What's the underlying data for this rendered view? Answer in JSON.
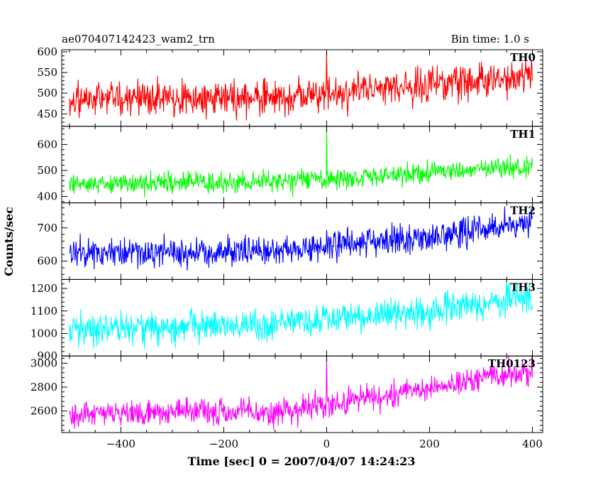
{
  "header": {
    "title": "ae070407142423_wam2_trn",
    "bin_time": "Bin time: 1.0 s"
  },
  "chart_data": {
    "type": "line",
    "xlabel": "Time [sec] 0 = 2007/04/07 14:24:23",
    "ylabel": "Counts/sec",
    "xlim": [
      -515,
      420
    ],
    "x_ticks": [
      -400,
      -200,
      0,
      200,
      400
    ],
    "x_tick_labels": [
      "−400",
      "−200",
      "0",
      "200",
      "400"
    ],
    "bin_size_s": 1.0,
    "x_range_data": [
      -500,
      400
    ],
    "legend": "none",
    "grid": false,
    "panels": [
      {
        "name": "TH0",
        "color": "#ff0000",
        "ylim": [
          420,
          605
        ],
        "y_ticks": [
          450,
          500,
          550,
          600
        ],
        "y_tick_labels": [
          "450",
          "500",
          "550",
          "600"
        ],
        "trend": [
          [
            -500,
            485
          ],
          [
            -100,
            492
          ],
          [
            0,
            500
          ],
          [
            200,
            518
          ],
          [
            400,
            540
          ]
        ],
        "noise": 22,
        "spikes": [
          {
            "x": 0,
            "y": 600
          }
        ]
      },
      {
        "name": "TH1",
        "color": "#00ff00",
        "ylim": [
          375,
          670
        ],
        "y_ticks": [
          400,
          500,
          600
        ],
        "y_tick_labels": [
          "400",
          "500",
          "600"
        ],
        "trend": [
          [
            -500,
            445
          ],
          [
            -100,
            455
          ],
          [
            0,
            465
          ],
          [
            200,
            490
          ],
          [
            400,
            520
          ]
        ],
        "noise": 20,
        "spikes": [
          {
            "x": 0,
            "y": 670
          }
        ]
      },
      {
        "name": "TH2",
        "color": "#0000ff",
        "ylim": [
          545,
          775
        ],
        "y_ticks": [
          600,
          700
        ],
        "y_tick_labels": [
          "600",
          "700"
        ],
        "trend": [
          [
            -500,
            625
          ],
          [
            -100,
            630
          ],
          [
            0,
            648
          ],
          [
            200,
            675
          ],
          [
            400,
            715
          ]
        ],
        "noise": 22,
        "spikes": []
      },
      {
        "name": "TH3",
        "color": "#00ffff",
        "ylim": [
          900,
          1240
        ],
        "y_ticks": [
          900,
          1000,
          1100,
          1200
        ],
        "y_tick_labels": [
          "900",
          "1000",
          "1100",
          "1200"
        ],
        "trend": [
          [
            -500,
            1020
          ],
          [
            -100,
            1040
          ],
          [
            0,
            1060
          ],
          [
            200,
            1100
          ],
          [
            400,
            1160
          ]
        ],
        "noise": 35,
        "spikes": []
      },
      {
        "name": "TH0123",
        "color": "#ff00ff",
        "ylim": [
          2420,
          3060
        ],
        "y_ticks": [
          2600,
          2800,
          3000
        ],
        "y_tick_labels": [
          "2600",
          "2800",
          "3000"
        ],
        "trend": [
          [
            -500,
            2570
          ],
          [
            -100,
            2600
          ],
          [
            0,
            2650
          ],
          [
            200,
            2790
          ],
          [
            400,
            2940
          ]
        ],
        "noise": 55,
        "spikes": [
          {
            "x": 0,
            "y": 3060
          }
        ]
      }
    ]
  }
}
